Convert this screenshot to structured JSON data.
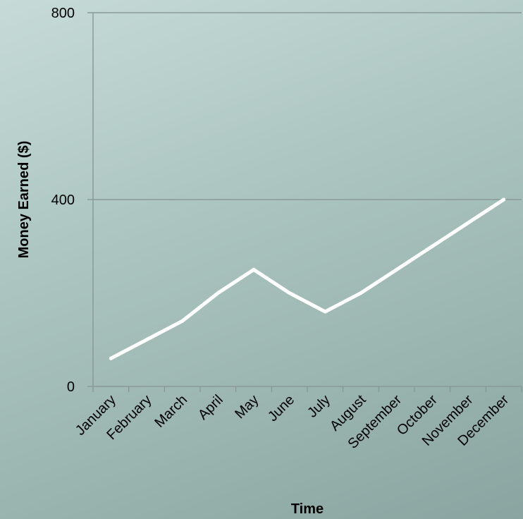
{
  "chart_data": {
    "type": "line",
    "title": "",
    "xlabel": "Time",
    "ylabel": "Money Earned ($)",
    "categories": [
      "January",
      "February",
      "March",
      "April",
      "May",
      "June",
      "July",
      "August",
      "September",
      "October",
      "November",
      "December"
    ],
    "series": [
      {
        "values": [
          60,
          100,
          140,
          200,
          250,
          200,
          160,
          200,
          250,
          300,
          350,
          400
        ]
      }
    ],
    "ylim": [
      0,
      800
    ],
    "yticks": [
      "0",
      "400",
      "800"
    ],
    "grid": true,
    "legend": "none",
    "colors": {
      "line": "#ffffff",
      "axis": "#8a9a98",
      "grid": "#8a9a98"
    }
  }
}
